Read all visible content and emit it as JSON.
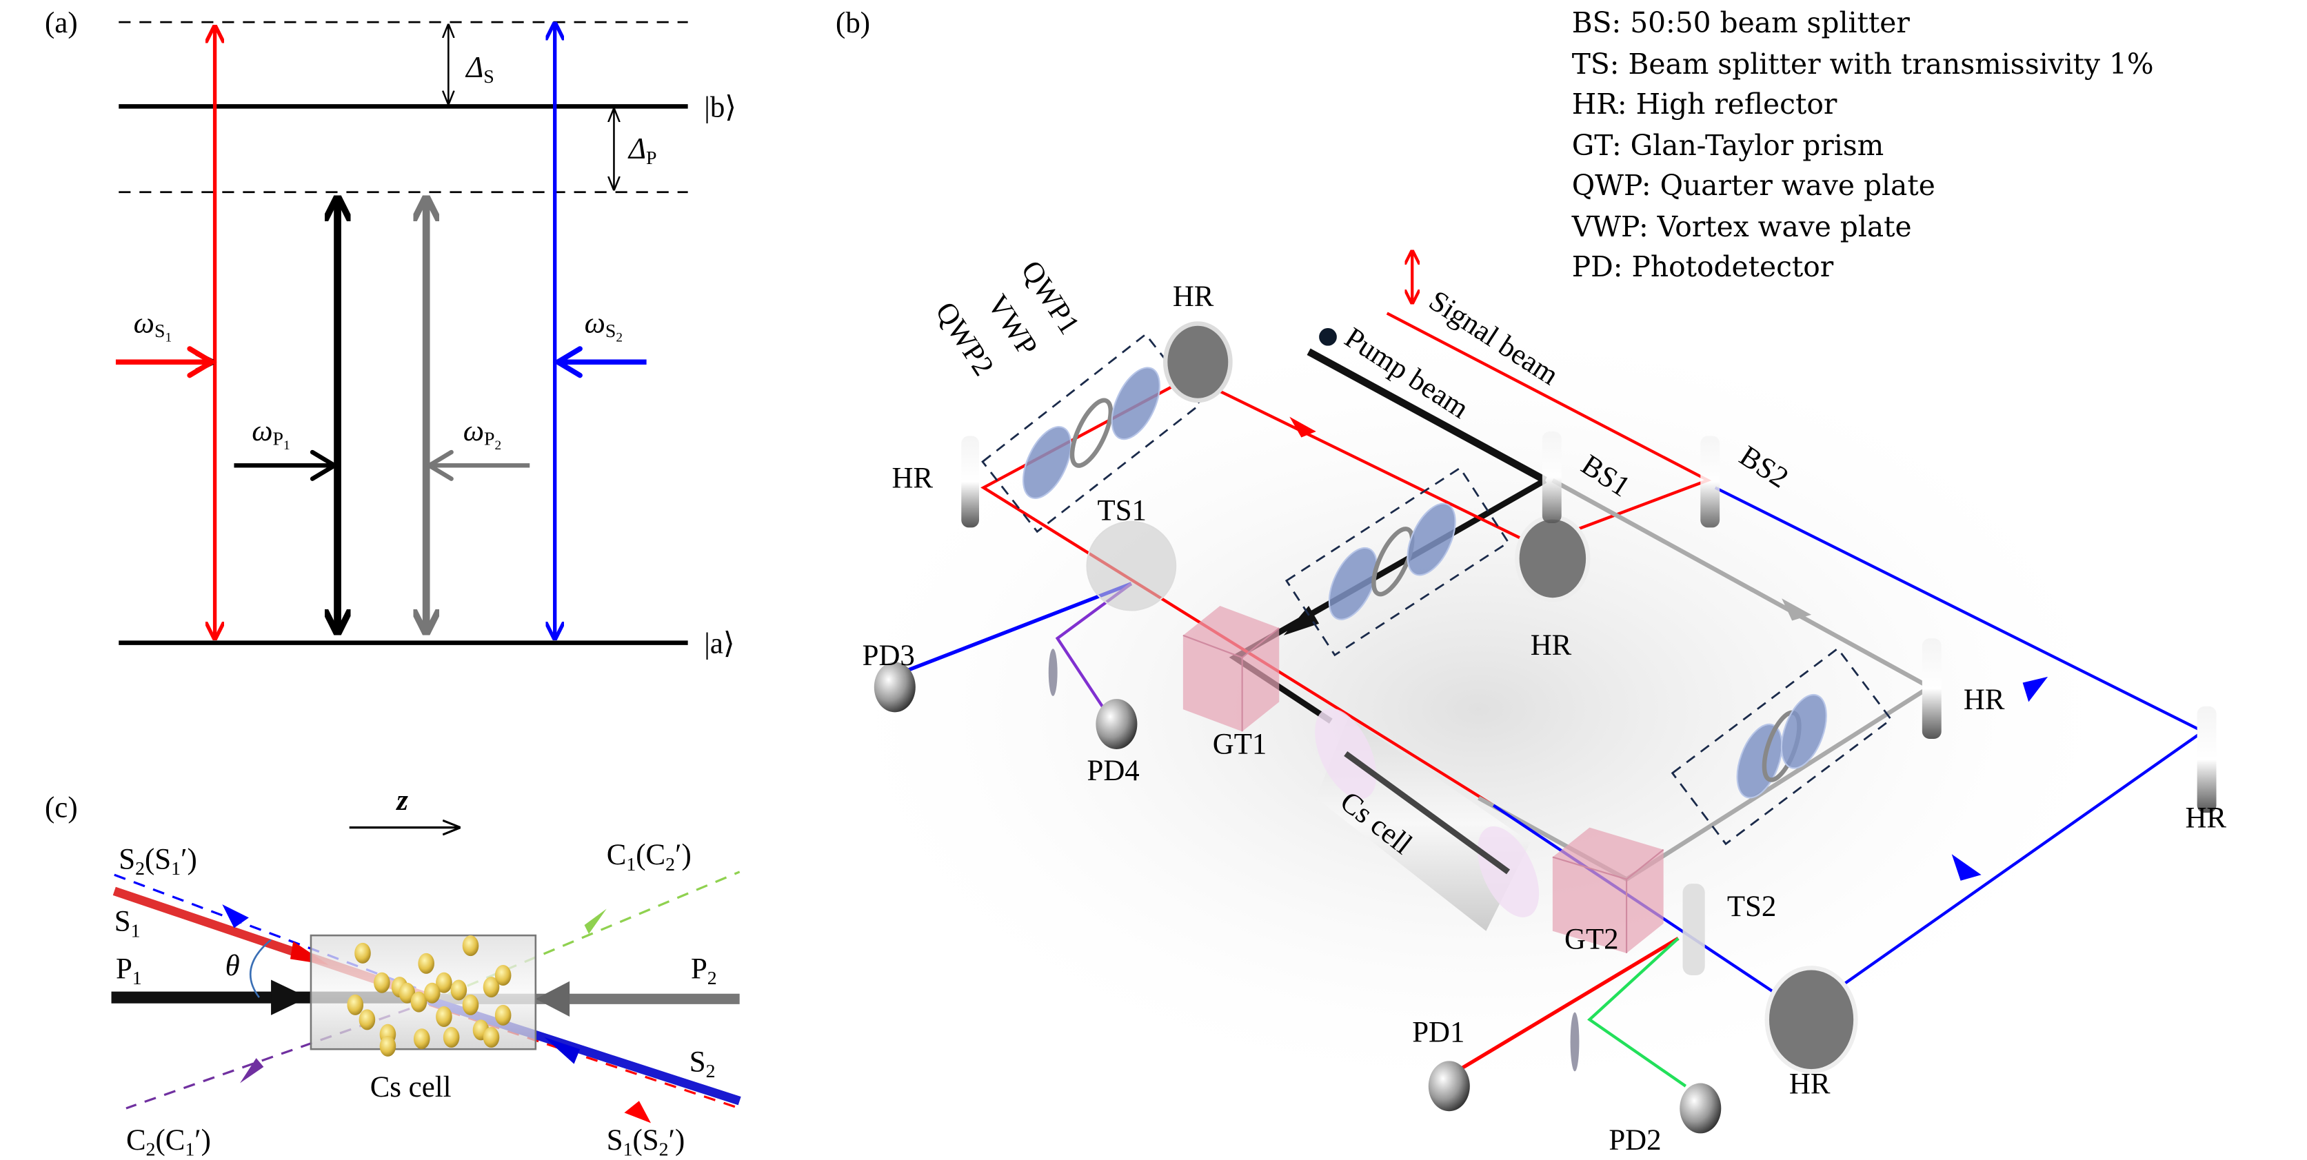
{
  "panel_a": {
    "tag": "(a)",
    "state_b": "|b⟩",
    "state_a": "|a⟩",
    "delta_s": {
      "symbol": "Δ",
      "sub": "S"
    },
    "delta_p": {
      "symbol": "Δ",
      "sub": "P"
    },
    "omega_s1": {
      "symbol": "ω",
      "sub": "S",
      "subsub": "1"
    },
    "omega_s2": {
      "symbol": "ω",
      "sub": "S",
      "subsub": "2"
    },
    "omega_p1": {
      "symbol": "ω",
      "sub": "P",
      "subsub": "1"
    },
    "omega_p2": {
      "symbol": "ω",
      "sub": "P",
      "subsub": "2"
    }
  },
  "panel_b": {
    "tag": "(b)",
    "legend": [
      "BS: 50:50 beam splitter",
      "TS: Beam splitter with transmissivity 1%",
      "HR: High reflector",
      "GT: Glan-Taylor prism",
      "QWP: Quarter wave plate",
      "VWP: Vortex wave plate",
      "PD: Photodetector"
    ],
    "labels": {
      "signal_beam": "Signal beam",
      "pump_beam": "Pump beam",
      "bs1": "BS1",
      "bs2": "BS2",
      "qwp1": "QWP1",
      "vwp": "VWP",
      "qwp2": "QWP2",
      "hr": "HR",
      "ts1": "TS1",
      "ts2": "TS2",
      "gt1": "GT1",
      "gt2": "GT2",
      "cs_cell": "Cs cell",
      "pd1": "PD1",
      "pd2": "PD2",
      "pd3": "PD3",
      "pd4": "PD4"
    }
  },
  "panel_c": {
    "tag": "(c)",
    "z_axis": "z",
    "s2_s1p": {
      "a": "S",
      "a_sub": "2",
      "b": "(S",
      "b_sub": "1",
      "b_end": "′)"
    },
    "s1": {
      "a": "S",
      "a_sub": "1"
    },
    "p1": {
      "a": "P",
      "a_sub": "1"
    },
    "p2": {
      "a": "P",
      "a_sub": "2"
    },
    "theta": "θ",
    "c1_c2p": {
      "a": "C",
      "a_sub": "1",
      "b": "(C",
      "b_sub": "2",
      "b_end": "′)"
    },
    "s2": {
      "a": "S",
      "a_sub": "2"
    },
    "c2_c1p": {
      "a": "C",
      "a_sub": "2",
      "b": "(C",
      "b_sub": "1",
      "b_end": "′)"
    },
    "s1_s2p": {
      "a": "S",
      "a_sub": "1",
      "b": "(S",
      "b_sub": "2",
      "b_end": "′)"
    },
    "cell": "Cs cell"
  },
  "colors": {
    "signal": "#ff0000",
    "conjugate_blue": "#0000ff",
    "pump": "#000000",
    "pump2": "#808080",
    "green": "#22e05a",
    "purple": "#8030d0",
    "waveplate": "#7f93c4",
    "prism": "#e6a3b3"
  }
}
